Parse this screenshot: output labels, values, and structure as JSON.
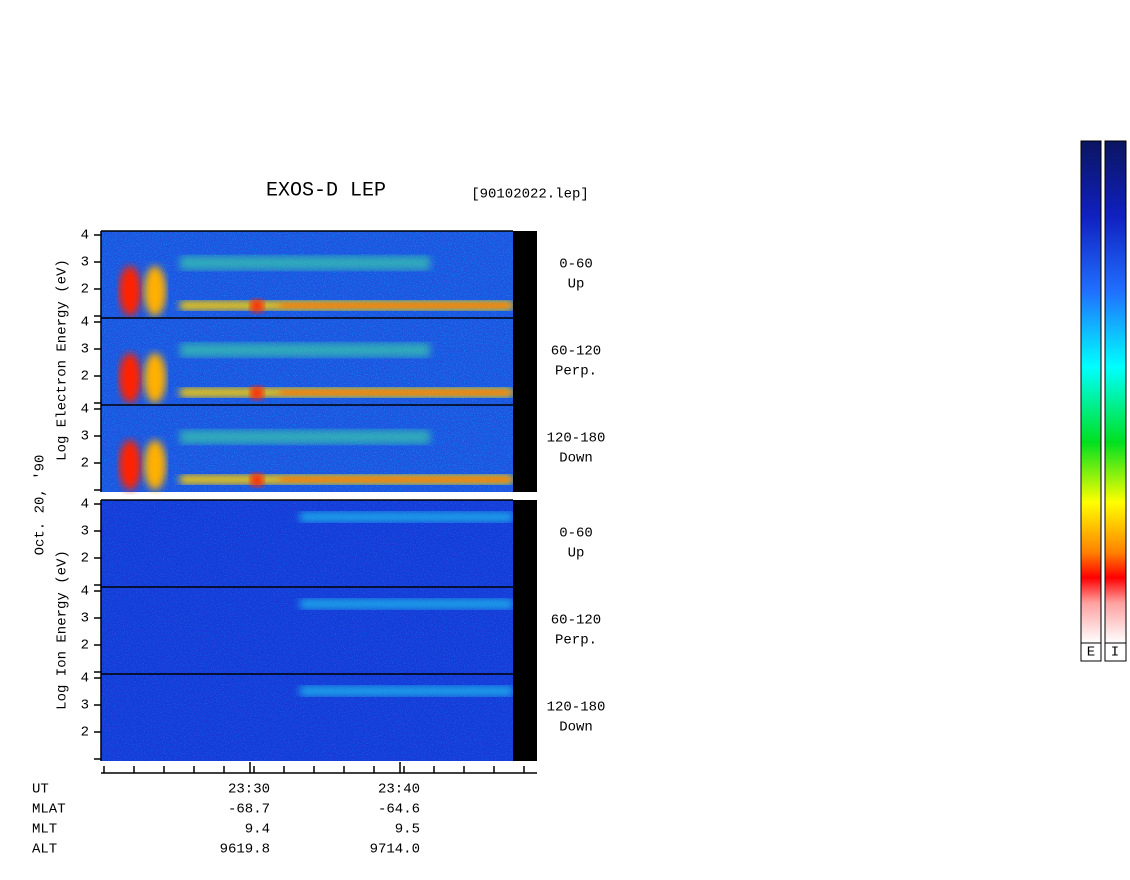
{
  "header": {
    "title": "EXOS-D LEP",
    "file": "[90102022.lep]"
  },
  "electron_label": "Log  Electron  Energy (eV)",
  "ion_label": "Log  Ion  Energy (eV)",
  "date": "Oct. 20, '90",
  "yticks": [
    2,
    3,
    4
  ],
  "panels": [
    {
      "pitch": "0-60",
      "direction": "Up"
    },
    {
      "pitch": "60-120",
      "direction": "Perp."
    },
    {
      "pitch": "120-180",
      "direction": "Down"
    }
  ],
  "time_axis": {
    "rows": [
      {
        "label": "UT",
        "values": [
          "23:30",
          "23:40"
        ]
      },
      {
        "label": "MLAT",
        "values": [
          "-68.7",
          "-64.6"
        ]
      },
      {
        "label": "MLT",
        "values": [
          "9.4",
          "9.5"
        ]
      },
      {
        "label": "ALT",
        "values": [
          "9619.8",
          "9714.0"
        ]
      }
    ]
  },
  "colorbars": [
    "E",
    "I"
  ]
}
